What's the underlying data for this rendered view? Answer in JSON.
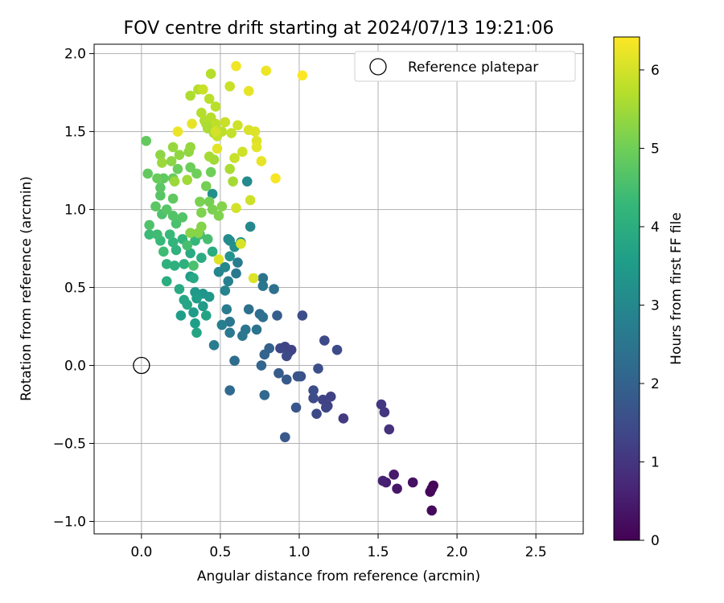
{
  "chart_data": {
    "type": "scatter",
    "title": "FOV centre drift starting at 2024/07/13 19:21:06",
    "xlabel": "Angular distance from reference (arcmin)",
    "ylabel": "Rotation from reference (arcmin)",
    "xlim": [
      -0.3,
      2.8
    ],
    "ylim": [
      -1.08,
      2.06
    ],
    "xticks": [
      0.0,
      0.5,
      1.0,
      1.5,
      2.0,
      2.5
    ],
    "xtick_labels": [
      "0.0",
      "0.5",
      "1.0",
      "1.5",
      "2.0",
      "2.5"
    ],
    "yticks": [
      -1.0,
      -0.5,
      0.0,
      0.5,
      1.0,
      1.5,
      2.0
    ],
    "ytick_labels": [
      "−1.0",
      "−0.5",
      "0.0",
      "0.5",
      "1.0",
      "1.5",
      "2.0"
    ],
    "grid": true,
    "colormap": "viridis",
    "colorbar": {
      "label": "Hours from first FF file",
      "min": 0,
      "max": 6.42,
      "ticks": [
        0,
        1,
        2,
        3,
        4,
        5,
        6
      ],
      "tick_labels": [
        "0",
        "1",
        "2",
        "3",
        "4",
        "5",
        "6"
      ]
    },
    "legend": {
      "position": "top-right",
      "entries": [
        "Reference platepar"
      ]
    },
    "reference_point": {
      "x": 0.0,
      "y": 0.0,
      "label": "Reference platepar"
    },
    "series": [
      {
        "points": [
          [
            1.85,
            -0.77,
            0.05
          ],
          [
            1.84,
            -0.79,
            0.08
          ],
          [
            1.83,
            -0.81,
            0.12
          ],
          [
            1.84,
            -0.93,
            0.15
          ],
          [
            1.72,
            -0.75,
            0.3
          ],
          [
            1.62,
            -0.79,
            0.4
          ],
          [
            1.6,
            -0.7,
            0.45
          ],
          [
            1.55,
            -0.75,
            0.55
          ],
          [
            1.53,
            -0.74,
            0.6
          ],
          [
            1.57,
            -0.41,
            0.9
          ],
          [
            1.54,
            -0.3,
            1.0
          ],
          [
            1.52,
            -0.25,
            1.05
          ],
          [
            1.28,
            -0.34,
            1.1
          ],
          [
            1.18,
            -0.26,
            1.2
          ],
          [
            1.2,
            -0.2,
            1.25
          ],
          [
            1.15,
            -0.22,
            1.3
          ],
          [
            1.17,
            -0.27,
            1.35
          ],
          [
            1.11,
            -0.31,
            1.4
          ],
          [
            1.09,
            -0.21,
            1.45
          ],
          [
            1.09,
            -0.16,
            1.5
          ],
          [
            1.12,
            -0.02,
            1.55
          ],
          [
            1.01,
            -0.07,
            1.6
          ],
          [
            0.99,
            -0.07,
            1.65
          ],
          [
            0.98,
            -0.27,
            1.7
          ],
          [
            0.91,
            -0.46,
            1.75
          ],
          [
            0.92,
            -0.09,
            1.8
          ],
          [
            0.87,
            -0.05,
            1.85
          ],
          [
            0.93,
            0.08,
            1.2
          ],
          [
            0.95,
            0.1,
            1.25
          ],
          [
            0.91,
            0.12,
            1.3
          ],
          [
            0.88,
            0.11,
            1.35
          ],
          [
            0.92,
            0.06,
            1.4
          ],
          [
            1.16,
            0.16,
            1.4
          ],
          [
            1.24,
            0.1,
            1.45
          ],
          [
            1.02,
            0.32,
            1.5
          ],
          [
            0.86,
            0.32,
            1.9
          ],
          [
            0.81,
            0.11,
            2.0
          ],
          [
            0.78,
            0.07,
            2.05
          ],
          [
            0.76,
            0.0,
            2.1
          ],
          [
            0.78,
            -0.19,
            2.15
          ],
          [
            0.56,
            -0.16,
            2.2
          ],
          [
            0.59,
            0.03,
            2.25
          ],
          [
            0.75,
            0.33,
            2.3
          ],
          [
            0.77,
            0.31,
            2.35
          ],
          [
            0.68,
            0.36,
            2.4
          ],
          [
            0.73,
            0.23,
            2.45
          ],
          [
            0.66,
            0.23,
            2.5
          ],
          [
            0.64,
            0.19,
            2.55
          ],
          [
            0.56,
            0.21,
            2.6
          ],
          [
            0.46,
            0.13,
            2.7
          ],
          [
            0.54,
            0.36,
            2.65
          ],
          [
            0.56,
            0.28,
            2.55
          ],
          [
            0.51,
            0.26,
            2.75
          ],
          [
            0.77,
            0.51,
            2.5
          ],
          [
            0.77,
            0.56,
            2.45
          ],
          [
            0.84,
            0.49,
            2.4
          ],
          [
            0.6,
            0.59,
            2.6
          ],
          [
            0.61,
            0.66,
            2.7
          ],
          [
            0.55,
            0.54,
            2.8
          ],
          [
            0.53,
            0.48,
            2.9
          ],
          [
            0.49,
            0.6,
            2.95
          ],
          [
            0.53,
            0.63,
            3.0
          ],
          [
            0.69,
            0.89,
            3.0
          ],
          [
            0.67,
            1.18,
            3.05
          ],
          [
            0.56,
            0.8,
            3.1
          ],
          [
            0.55,
            0.81,
            3.1
          ],
          [
            0.45,
            1.1,
            3.2
          ],
          [
            0.59,
            0.76,
            3.2
          ],
          [
            0.63,
            0.79,
            3.25
          ],
          [
            0.56,
            0.7,
            3.3
          ],
          [
            0.39,
            0.46,
            3.35
          ],
          [
            0.43,
            0.44,
            3.4
          ],
          [
            0.34,
            0.47,
            3.45
          ],
          [
            0.39,
            0.38,
            3.5
          ],
          [
            0.33,
            0.34,
            3.5
          ],
          [
            0.31,
            0.57,
            3.55
          ],
          [
            0.35,
            0.43,
            3.55
          ],
          [
            0.25,
            0.32,
            3.6
          ],
          [
            0.34,
            0.27,
            3.6
          ],
          [
            0.41,
            0.32,
            3.7
          ],
          [
            0.35,
            0.21,
            3.75
          ],
          [
            0.27,
            0.42,
            3.8
          ],
          [
            0.29,
            0.39,
            3.8
          ],
          [
            0.33,
            0.56,
            3.85
          ],
          [
            0.24,
            0.49,
            3.9
          ],
          [
            0.31,
            0.72,
            3.9
          ],
          [
            0.38,
            0.69,
            3.95
          ],
          [
            0.45,
            0.73,
            3.95
          ],
          [
            0.16,
            0.54,
            4.0
          ],
          [
            0.21,
            0.64,
            4.05
          ],
          [
            0.16,
            0.65,
            4.1
          ],
          [
            0.27,
            0.65,
            4.1
          ],
          [
            0.22,
            0.74,
            4.15
          ],
          [
            0.2,
            0.79,
            4.2
          ],
          [
            0.26,
            0.81,
            4.2
          ],
          [
            0.34,
            0.8,
            4.25
          ],
          [
            0.18,
            0.84,
            4.3
          ],
          [
            0.12,
            0.8,
            4.3
          ],
          [
            0.05,
            0.84,
            4.35
          ],
          [
            0.1,
            0.84,
            4.4
          ],
          [
            0.14,
            0.73,
            4.4
          ],
          [
            0.37,
            0.84,
            4.45
          ],
          [
            0.29,
            0.77,
            4.5
          ],
          [
            0.42,
            0.81,
            4.5
          ],
          [
            0.33,
            0.64,
            4.55
          ],
          [
            0.22,
            0.91,
            4.55
          ],
          [
            0.05,
            0.9,
            4.6
          ],
          [
            0.13,
            0.97,
            4.6
          ],
          [
            0.2,
            0.96,
            4.65
          ],
          [
            0.26,
            0.95,
            4.65
          ],
          [
            0.16,
            1.0,
            4.7
          ],
          [
            0.12,
            1.09,
            4.7
          ],
          [
            0.09,
            1.02,
            4.75
          ],
          [
            0.12,
            1.14,
            4.75
          ],
          [
            0.2,
            1.07,
            4.8
          ],
          [
            0.14,
            1.2,
            4.8
          ],
          [
            0.04,
            1.23,
            4.85
          ],
          [
            0.03,
            1.44,
            4.85
          ],
          [
            0.1,
            1.2,
            4.9
          ],
          [
            0.2,
            1.2,
            4.9
          ],
          [
            0.23,
            1.26,
            4.95
          ],
          [
            0.31,
            1.27,
            4.95
          ],
          [
            0.35,
            1.23,
            5.0
          ],
          [
            0.44,
            1.24,
            5.0
          ],
          [
            0.41,
            1.15,
            5.05
          ],
          [
            0.43,
            1.05,
            5.05
          ],
          [
            0.37,
            1.05,
            5.1
          ],
          [
            0.45,
            1.0,
            5.1
          ],
          [
            0.38,
            0.98,
            5.15
          ],
          [
            0.49,
            0.96,
            5.15
          ],
          [
            0.51,
            1.02,
            5.2
          ],
          [
            0.38,
            0.89,
            5.2
          ],
          [
            0.36,
            0.85,
            5.25
          ],
          [
            0.31,
            0.85,
            5.25
          ],
          [
            0.12,
            1.35,
            5.3
          ],
          [
            0.19,
            1.31,
            5.3
          ],
          [
            0.24,
            1.35,
            5.35
          ],
          [
            0.3,
            1.37,
            5.35
          ],
          [
            0.31,
            1.4,
            5.4
          ],
          [
            0.2,
            1.4,
            5.4
          ],
          [
            0.13,
            1.3,
            5.45
          ],
          [
            0.21,
            1.18,
            5.45
          ],
          [
            0.29,
            1.19,
            5.5
          ],
          [
            0.46,
            1.32,
            5.5
          ],
          [
            0.43,
            1.34,
            5.55
          ],
          [
            0.46,
            1.49,
            5.55
          ],
          [
            0.41,
            1.55,
            5.6
          ],
          [
            0.42,
            1.52,
            5.6
          ],
          [
            0.4,
            1.57,
            5.65
          ],
          [
            0.31,
            1.73,
            5.65
          ],
          [
            0.38,
            1.62,
            5.7
          ],
          [
            0.44,
            1.59,
            5.7
          ],
          [
            0.36,
            1.77,
            5.7
          ],
          [
            0.43,
            1.71,
            5.75
          ],
          [
            0.47,
            1.66,
            5.75
          ],
          [
            0.47,
            1.55,
            5.8
          ],
          [
            0.51,
            1.5,
            5.8
          ],
          [
            0.48,
            1.47,
            5.85
          ],
          [
            0.57,
            1.49,
            5.85
          ],
          [
            0.53,
            1.56,
            5.9
          ],
          [
            0.56,
            1.79,
            5.9
          ],
          [
            0.61,
            1.54,
            5.95
          ],
          [
            0.59,
            1.33,
            5.9
          ],
          [
            0.64,
            1.37,
            5.95
          ],
          [
            0.56,
            1.26,
            5.6
          ],
          [
            0.58,
            1.18,
            5.55
          ],
          [
            0.69,
            1.06,
            5.95
          ],
          [
            0.6,
            1.01,
            6.0
          ],
          [
            0.63,
            0.78,
            6.05
          ],
          [
            0.71,
            0.56,
            6.1
          ],
          [
            0.49,
            0.68,
            6.1
          ],
          [
            0.44,
            1.87,
            5.7
          ],
          [
            0.39,
            1.77,
            5.9
          ],
          [
            0.47,
            1.5,
            6.0
          ],
          [
            0.68,
            1.51,
            6.05
          ],
          [
            0.72,
            1.5,
            6.1
          ],
          [
            0.73,
            1.44,
            6.1
          ],
          [
            0.73,
            1.4,
            6.15
          ],
          [
            0.68,
            1.76,
            6.2
          ],
          [
            0.76,
            1.31,
            6.2
          ],
          [
            0.79,
            1.89,
            6.25
          ],
          [
            0.6,
            1.92,
            6.3
          ],
          [
            0.85,
            1.2,
            6.35
          ],
          [
            1.02,
            1.86,
            6.4
          ],
          [
            0.48,
            1.39,
            6.15
          ],
          [
            0.32,
            1.55,
            6.2
          ],
          [
            0.23,
            1.5,
            6.25
          ]
        ]
      }
    ]
  }
}
